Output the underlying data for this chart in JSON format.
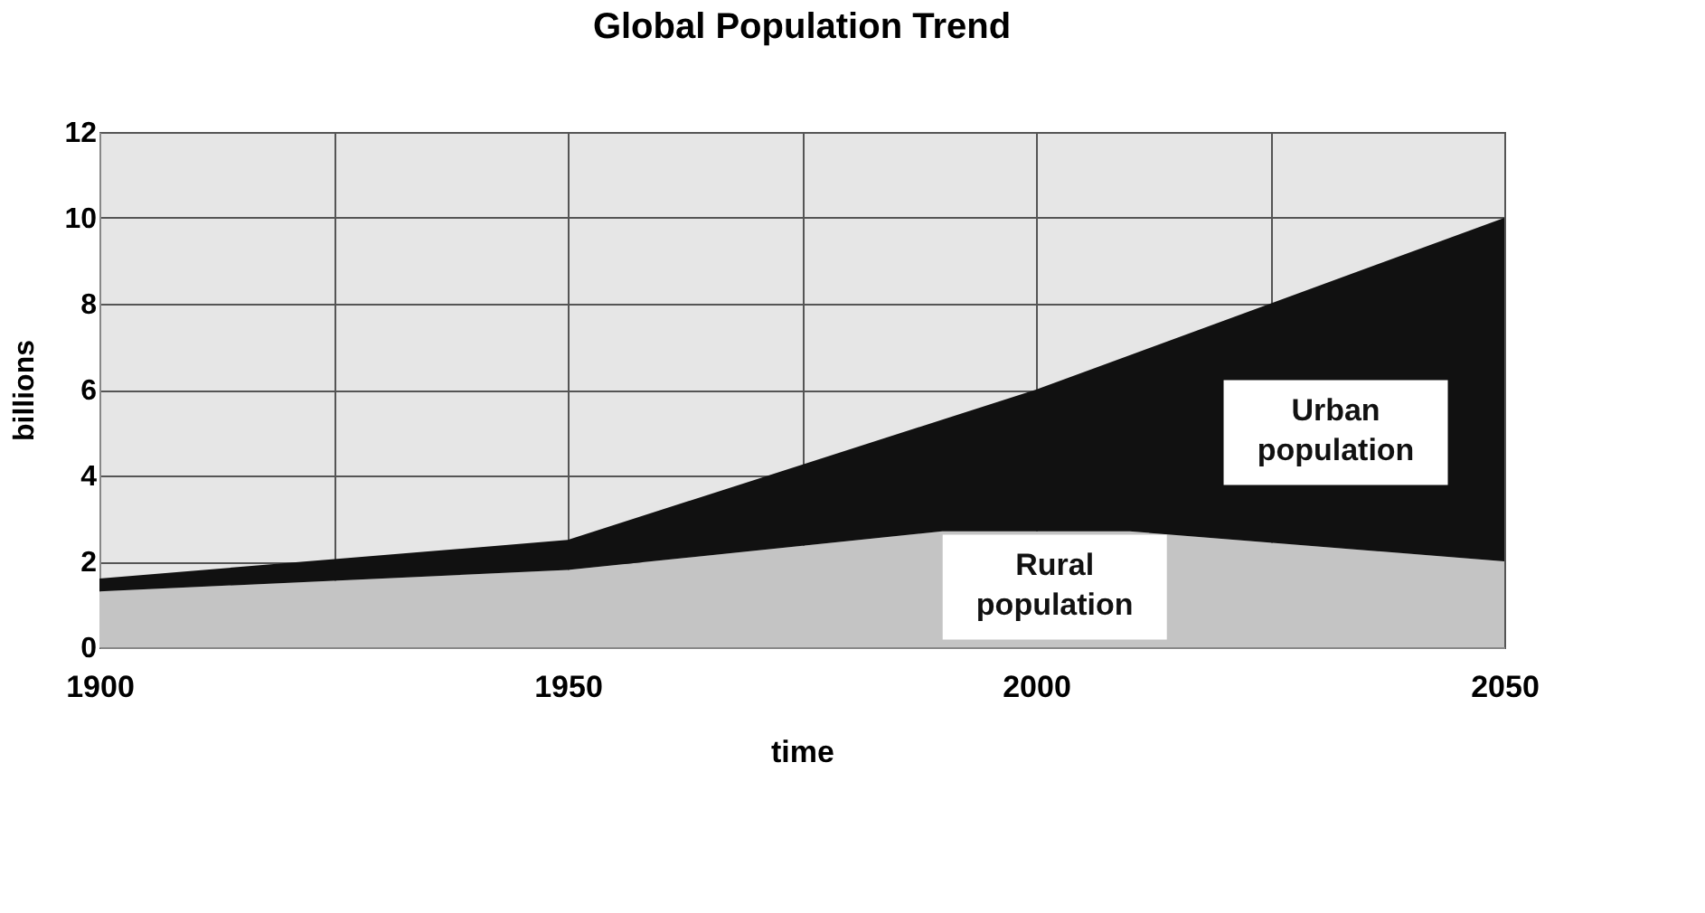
{
  "chart_data": {
    "type": "area",
    "title": "Global Population Trend",
    "xlabel": "time",
    "ylabel": "billions",
    "stacked": true,
    "x": [
      1900,
      1950,
      1990,
      2000,
      2010,
      2050
    ],
    "series": [
      {
        "name": "Rural population",
        "color": "#c4c4c4",
        "values": [
          1.3,
          1.8,
          2.7,
          2.7,
          2.7,
          2.0
        ]
      },
      {
        "name": "Urban population",
        "color": "#111111",
        "values": [
          0.3,
          0.7,
          2.6,
          3.3,
          4.1,
          8.0
        ]
      }
    ],
    "xlim": [
      1900,
      2050
    ],
    "xticks": [
      1900,
      {
        "value": 1925,
        "label": null
      },
      1950,
      {
        "value": 1975,
        "label": null
      },
      2000,
      {
        "value": 2025,
        "label": null
      },
      2050
    ],
    "ylim": [
      0,
      12
    ],
    "yticks": [
      0,
      2,
      4,
      6,
      8,
      10,
      12
    ],
    "grid": true,
    "legend": false
  }
}
